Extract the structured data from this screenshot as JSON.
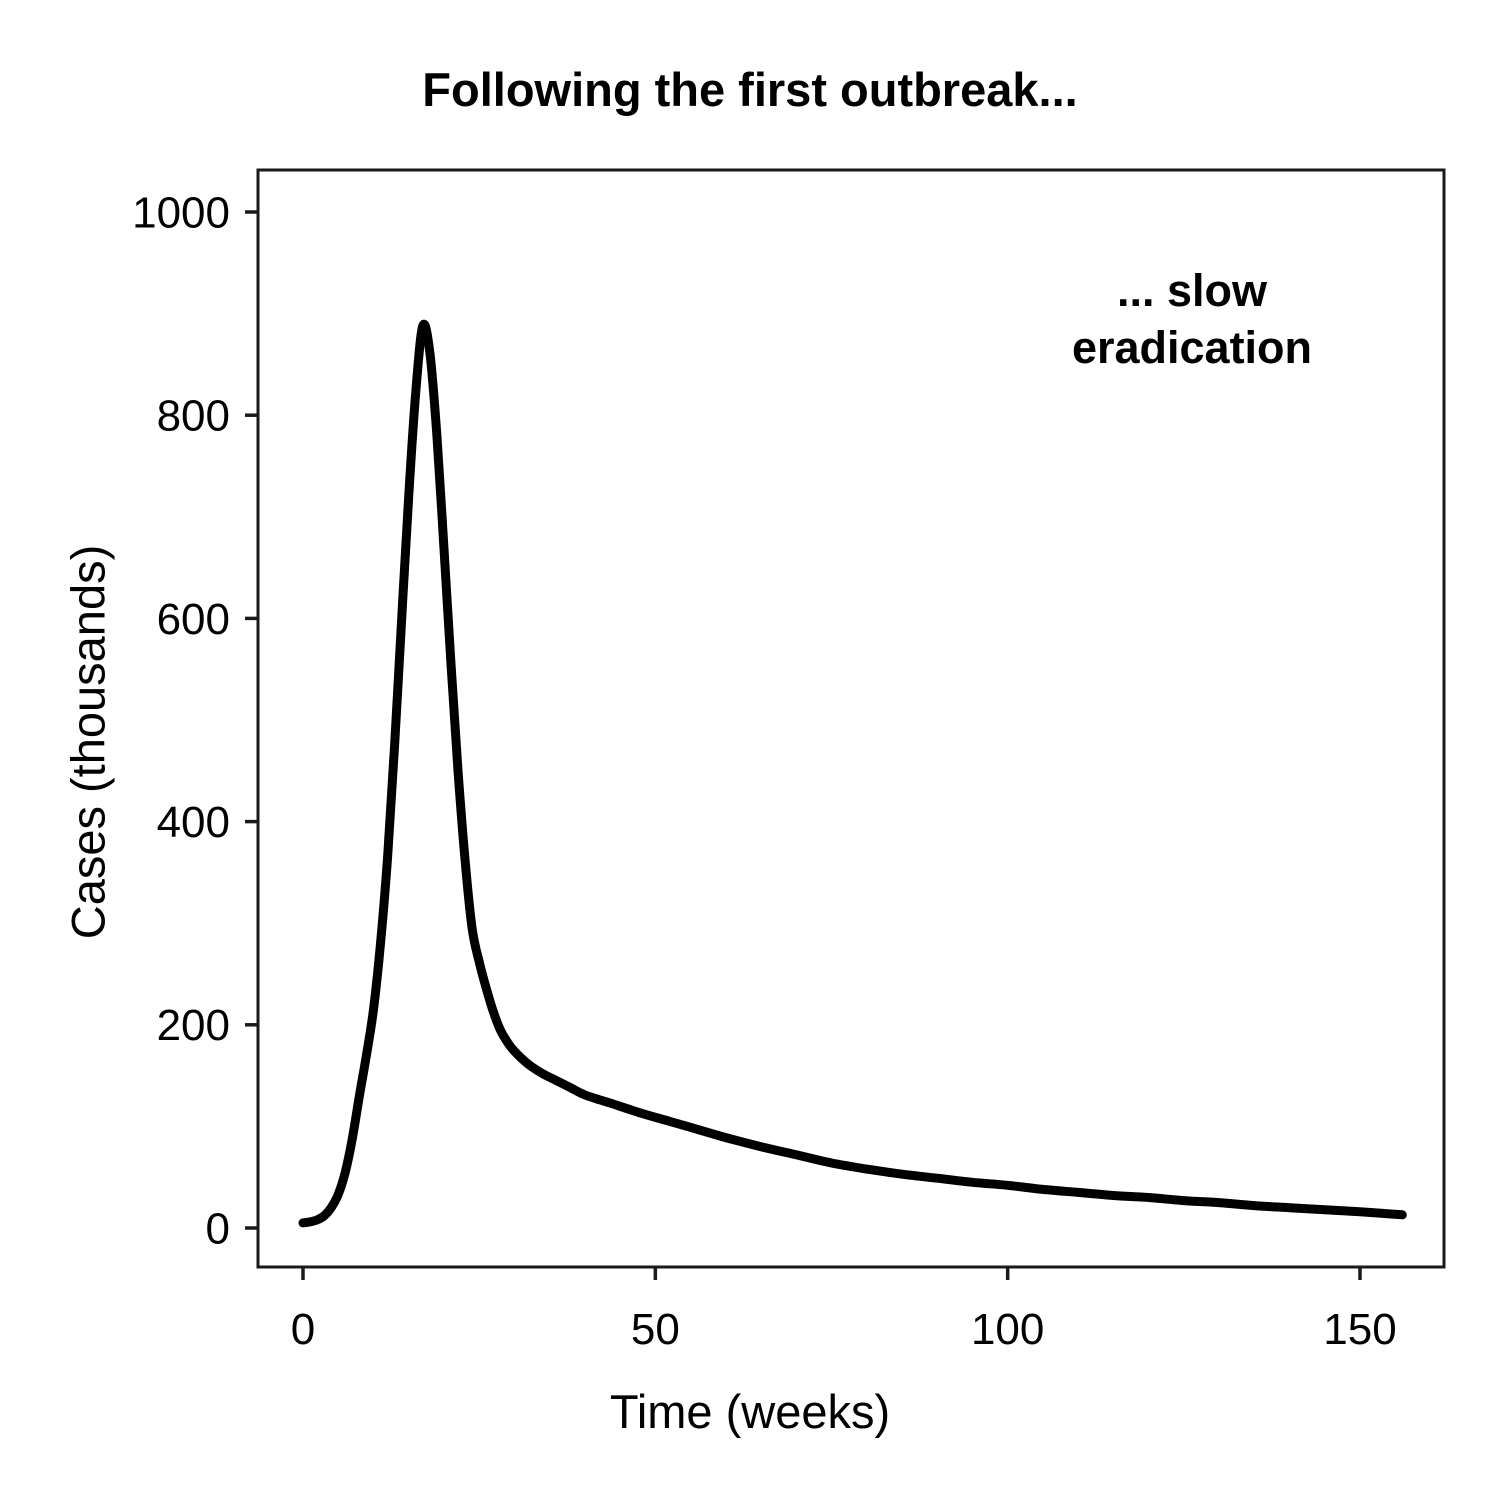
{
  "title": "Following the first outbreak...",
  "annotation": {
    "line1": "... slow",
    "line2": "eradication"
  },
  "chart_data": {
    "type": "line",
    "title": "Following the first outbreak...",
    "xlabel": "Time (weeks)",
    "ylabel": "Cases (thousands)",
    "annotation": "... slow eradication",
    "x_ticks": [
      0,
      50,
      100,
      150
    ],
    "y_ticks": [
      0,
      200,
      400,
      600,
      800,
      1000
    ],
    "xlim": [
      0,
      162
    ],
    "ylim": [
      -38,
      1041
    ],
    "grid": false,
    "legend_position": "none",
    "line_color": "#000000",
    "series": [
      {
        "name": "Cases",
        "points": [
          [
            0,
            5
          ],
          [
            1,
            6
          ],
          [
            2,
            8
          ],
          [
            3,
            12
          ],
          [
            4,
            20
          ],
          [
            5,
            33
          ],
          [
            6,
            55
          ],
          [
            7,
            88
          ],
          [
            8,
            130
          ],
          [
            9,
            170
          ],
          [
            10,
            215
          ],
          [
            11,
            280
          ],
          [
            12,
            365
          ],
          [
            13,
            475
          ],
          [
            14,
            600
          ],
          [
            15,
            720
          ],
          [
            16,
            822
          ],
          [
            17,
            888
          ],
          [
            18,
            862
          ],
          [
            19,
            780
          ],
          [
            20,
            670
          ],
          [
            21,
            555
          ],
          [
            22,
            450
          ],
          [
            23,
            362
          ],
          [
            24,
            295
          ],
          [
            25,
            262
          ],
          [
            26,
            236
          ],
          [
            27,
            213
          ],
          [
            28,
            195
          ],
          [
            29,
            183
          ],
          [
            30,
            174
          ],
          [
            32,
            161
          ],
          [
            34,
            152
          ],
          [
            36,
            145
          ],
          [
            38,
            138
          ],
          [
            40,
            131
          ],
          [
            44,
            122
          ],
          [
            48,
            113
          ],
          [
            52,
            105
          ],
          [
            56,
            97
          ],
          [
            60,
            89
          ],
          [
            65,
            80
          ],
          [
            70,
            72
          ],
          [
            75,
            64
          ],
          [
            80,
            58
          ],
          [
            85,
            53
          ],
          [
            90,
            49
          ],
          [
            95,
            45
          ],
          [
            100,
            42
          ],
          [
            105,
            38
          ],
          [
            110,
            35
          ],
          [
            115,
            32
          ],
          [
            120,
            30
          ],
          [
            125,
            27
          ],
          [
            130,
            25
          ],
          [
            135,
            22
          ],
          [
            140,
            20
          ],
          [
            145,
            18
          ],
          [
            150,
            16
          ],
          [
            156,
            13
          ]
        ]
      }
    ]
  },
  "colors": {
    "background": "#ffffff",
    "axis": "#1a1a1a",
    "text": "#000000",
    "curve": "#000000"
  }
}
